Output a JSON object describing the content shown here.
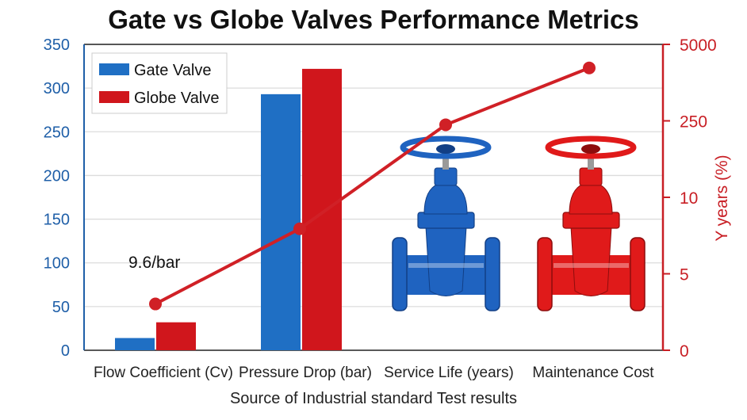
{
  "chart_data": {
    "type": "bar",
    "title": "Gate vs Globe Valves Performance Metrics",
    "xlabel": "Source of Industrial standard Test results",
    "ylabel": "",
    "y2label": "Y years (%)",
    "categories": [
      "Flow Coefficient (Cv)",
      "Pressure Drop (bar)",
      "Service Life (years)",
      "Maintenance Cost"
    ],
    "ylim": [
      0,
      350
    ],
    "yticks": [
      "0",
      "50",
      "100",
      "150",
      "200",
      "250",
      "300",
      "350"
    ],
    "y2ticks": [
      "0",
      "5",
      "10",
      "250",
      "5000"
    ],
    "grid": true,
    "legend_position": "top-left",
    "series": [
      {
        "name": "Gate Valve",
        "type": "bar",
        "color": "#1f6fc4",
        "values": [
          14,
          293,
          null,
          null
        ]
      },
      {
        "name": "Globe Valve",
        "type": "bar",
        "color": "#d0161c",
        "values": [
          32,
          322,
          null,
          null
        ]
      },
      {
        "type": "line",
        "color": "#d02026",
        "values": [
          53,
          139,
          258,
          323
        ]
      }
    ],
    "annotations": [
      "9.6/bar"
    ],
    "images": [
      {
        "category": "Service Life (years)",
        "depicts": "blue gate valve",
        "color": "#1f63c0"
      },
      {
        "category": "Maintenance Cost",
        "depicts": "red gate valve",
        "color": "#e01a1a"
      }
    ],
    "colors": {
      "left_axis": "#1f5fa8",
      "right_axis": "#c81e24"
    }
  }
}
